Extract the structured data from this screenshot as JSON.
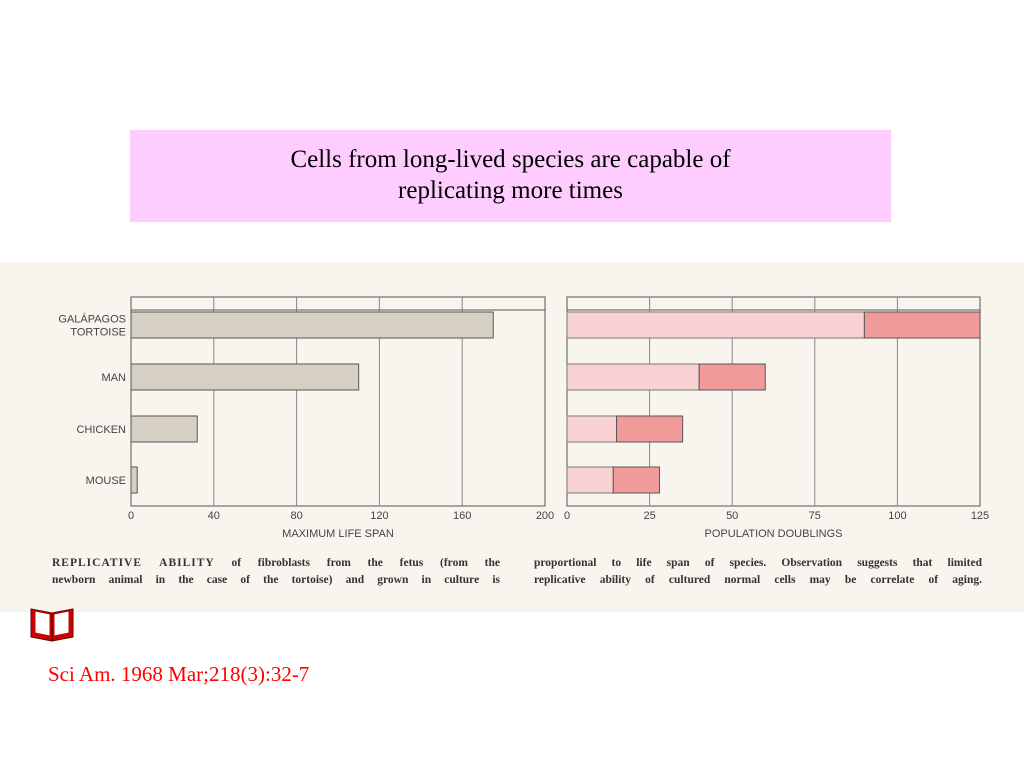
{
  "slide": {
    "title_line1": "Cells from long-lived species are capable of",
    "title_line2": "replicating more times",
    "citation": "Sci Am. 1968 Mar;218(3):32-7",
    "caption_left_lead": "REPLICATIVE ABILITY",
    "caption_left_rest1": " of fibroblasts from the fetus (from the",
    "caption_left_line2": "newborn animal in the case of the tortoise) and grown in culture is",
    "caption_right_line1": "proportional to life span of species. Observation suggests that limited",
    "caption_right_line2": "replicative ability of cultured normal cells may be correlate of aging.",
    "icon": "open-book-icon"
  },
  "chart_data": [
    {
      "type": "bar",
      "orientation": "horizontal",
      "categories": [
        "GALÁPAGOS TORTOISE",
        "MAN",
        "CHICKEN",
        "MOUSE"
      ],
      "category_lines": [
        [
          "GALÁPAGOS",
          "TORTOISE"
        ],
        [
          "MAN"
        ],
        [
          "CHICKEN"
        ],
        [
          "MOUSE"
        ]
      ],
      "values": [
        175,
        110,
        32,
        3
      ],
      "xlabel": "MAXIMUM LIFE SPAN",
      "xlim": [
        0,
        200
      ],
      "xticks": [
        "0",
        "40",
        "80",
        "120",
        "160",
        "200"
      ],
      "bar_color": "#d6d0c4",
      "grid": true
    },
    {
      "type": "bar",
      "orientation": "horizontal",
      "stacked": true,
      "categories": [
        "GALÁPAGOS TORTOISE",
        "MAN",
        "CHICKEN",
        "MOUSE"
      ],
      "ranges": [
        [
          90,
          125
        ],
        [
          40,
          60
        ],
        [
          15,
          35
        ],
        [
          14,
          28
        ]
      ],
      "xlabel": "POPULATION DOUBLINGS",
      "xlim": [
        0,
        125
      ],
      "xticks": [
        "0",
        "25",
        "50",
        "75",
        "100",
        "125"
      ],
      "light_color": "#f8d2d2",
      "dark_color": "#f09a9a",
      "grid": true
    }
  ]
}
